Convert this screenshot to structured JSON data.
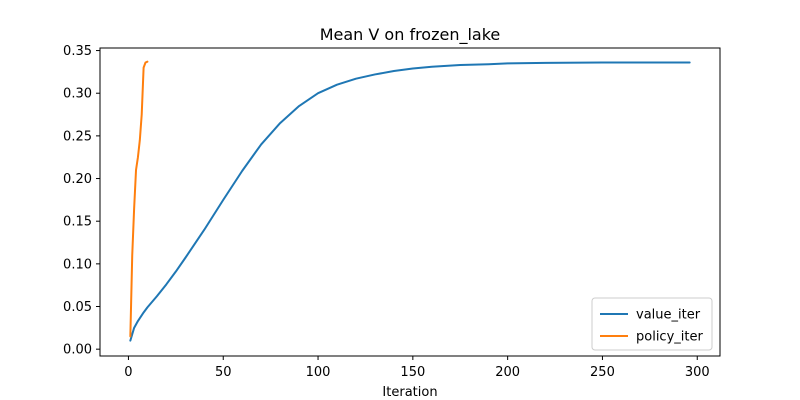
{
  "chart_data": {
    "type": "line",
    "title": "Mean V on frozen_lake",
    "xlabel": "Iteration",
    "ylabel": "",
    "xlim": [
      -15,
      312
    ],
    "ylim": [
      -0.008,
      0.353
    ],
    "xticks": [
      0,
      50,
      100,
      150,
      200,
      250,
      300
    ],
    "yticks": [
      0.0,
      0.05,
      0.1,
      0.15,
      0.2,
      0.25,
      0.3,
      0.35
    ],
    "ytick_labels": [
      "0.00",
      "0.05",
      "0.10",
      "0.15",
      "0.20",
      "0.25",
      "0.30",
      "0.35"
    ],
    "grid": false,
    "legend_position": "lower-right",
    "series": [
      {
        "name": "value_iter",
        "color": "#1f77b4",
        "x": [
          1,
          3,
          5,
          8,
          10,
          15,
          20,
          25,
          30,
          40,
          50,
          60,
          70,
          80,
          90,
          100,
          110,
          120,
          130,
          140,
          150,
          160,
          175,
          190,
          200,
          220,
          250,
          270,
          296
        ],
        "y": [
          0.01,
          0.025,
          0.033,
          0.043,
          0.049,
          0.062,
          0.076,
          0.091,
          0.107,
          0.14,
          0.175,
          0.209,
          0.24,
          0.265,
          0.285,
          0.3,
          0.31,
          0.317,
          0.322,
          0.326,
          0.329,
          0.331,
          0.333,
          0.334,
          0.335,
          0.3355,
          0.336,
          0.336,
          0.336
        ]
      },
      {
        "name": "policy_iter",
        "color": "#ff7f0e",
        "x": [
          1,
          2,
          3,
          4,
          5,
          6,
          7,
          8,
          9,
          10
        ],
        "y": [
          0.015,
          0.11,
          0.165,
          0.21,
          0.225,
          0.245,
          0.275,
          0.33,
          0.336,
          0.337
        ]
      }
    ]
  }
}
